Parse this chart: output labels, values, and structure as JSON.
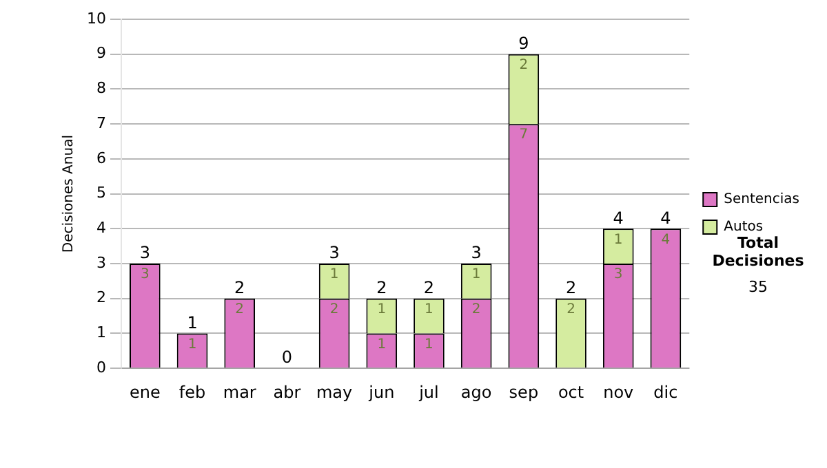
{
  "chart_data": {
    "type": "bar",
    "stacked": true,
    "ylabel": "Decisiones Anual",
    "categories": [
      "ene",
      "feb",
      "mar",
      "abr",
      "may",
      "jun",
      "jul",
      "ago",
      "sep",
      "oct",
      "nov",
      "dic"
    ],
    "series": [
      {
        "name": "Sentencias",
        "color": "#dd77c4",
        "values": [
          3,
          1,
          2,
          0,
          2,
          1,
          1,
          2,
          7,
          0,
          3,
          4
        ],
        "value_labels": [
          "3",
          "1",
          "2",
          null,
          "2",
          "1",
          "1",
          "2",
          "7",
          null,
          "3",
          "4"
        ]
      },
      {
        "name": "Autos",
        "color": "#d5eca0",
        "values": [
          0,
          0,
          0,
          0,
          1,
          1,
          1,
          1,
          2,
          2,
          1,
          0
        ],
        "value_labels": [
          null,
          null,
          null,
          null,
          "1",
          "1",
          "1",
          "1",
          "2",
          "2",
          "1",
          null
        ]
      }
    ],
    "totals": [
      "3",
      "1",
      "2",
      "0",
      "3",
      "2",
      "2",
      "3",
      "9",
      "2",
      "4",
      "4"
    ],
    "ylim": [
      0,
      10
    ],
    "yticks": [
      0,
      1,
      2,
      3,
      4,
      5,
      6,
      7,
      8,
      9,
      10
    ],
    "grid": "y",
    "legend": "right",
    "annotations": [
      "Total Decisiones",
      "35"
    ]
  }
}
